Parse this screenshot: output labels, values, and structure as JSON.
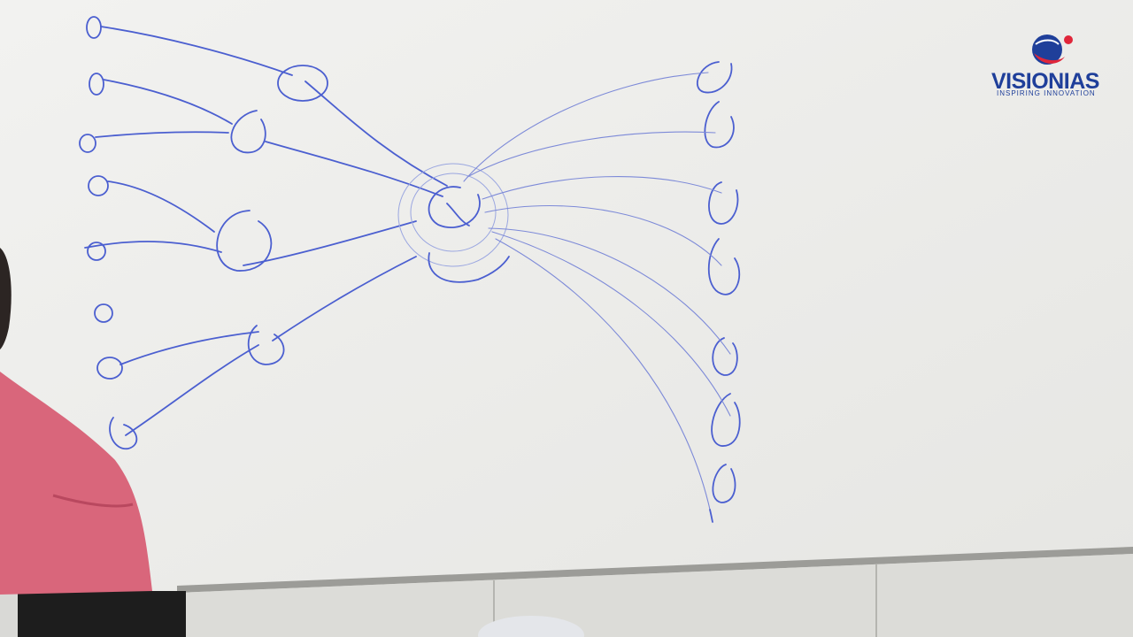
{
  "brand": {
    "name_part1": "VISION",
    "name_part2": "IAS",
    "tagline": "INSPIRING INNOVATION",
    "colors": {
      "blue": "#1f3f9a",
      "red": "#e0263a"
    }
  },
  "colors": {
    "whiteboard": "#eeeeec",
    "marker_ink": "#4b5fd0",
    "shirt": "#d9667b"
  }
}
